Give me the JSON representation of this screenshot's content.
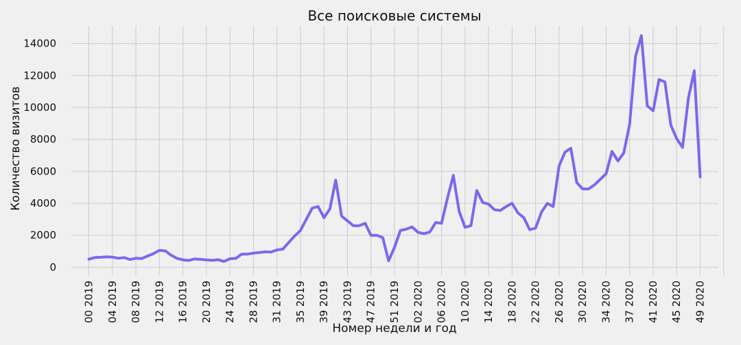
{
  "chart_data": {
    "type": "line",
    "title": "Все поисковые системы",
    "xlabel": "Номер недели и год",
    "ylabel": "Количество визитов",
    "x_tick_labels": [
      "00 2019",
      "04 2019",
      "08 2019",
      "12 2019",
      "16 2019",
      "20 2019",
      "24 2019",
      "28 2019",
      "31 2019",
      "35 2019",
      "39 2019",
      "43 2019",
      "47 2019",
      "51 2019",
      "02 2020",
      "06 2020",
      "10 2020",
      "14 2020",
      "18 2020",
      "22 2020",
      "26 2020",
      "30 2020",
      "34 2020",
      "37 2020",
      "41 2020",
      "45 2020",
      "49 2020"
    ],
    "y_ticks": [
      0,
      2000,
      4000,
      6000,
      8000,
      10000,
      12000,
      14000
    ],
    "ylim": [
      -500,
      15100
    ],
    "grid": true,
    "legend": "none",
    "colors": {
      "line": "#7b68ee",
      "background": "#f0f0f0",
      "grid": "#cbcbcb",
      "text": "#111111"
    },
    "series": [
      {
        "values": [
          500,
          600,
          620,
          650,
          630,
          560,
          600,
          480,
          560,
          540,
          700,
          850,
          1050,
          1020,
          750,
          550,
          460,
          420,
          520,
          490,
          460,
          430,
          470,
          360,
          530,
          550,
          820,
          820,
          880,
          920,
          960,
          950,
          1080,
          1130,
          1550,
          1950,
          2300,
          3000,
          3700,
          3800,
          3100,
          3650,
          5450,
          3200,
          2900,
          2600,
          2600,
          2750,
          2000,
          2000,
          1850,
          400,
          1250,
          2300,
          2380,
          2520,
          2180,
          2100,
          2200,
          2800,
          2750,
          4300,
          5750,
          3500,
          2500,
          2600,
          4800,
          4050,
          3950,
          3600,
          3550,
          3800,
          4000,
          3400,
          3100,
          2350,
          2450,
          3450,
          4000,
          3800,
          6350,
          7200,
          7450,
          5300,
          4900,
          4900,
          5150,
          5500,
          5850,
          7250,
          6650,
          7150,
          8950,
          13200,
          14500,
          10100,
          9800,
          11750,
          11600,
          8900,
          8050,
          7500,
          10600,
          12300,
          5650
        ]
      }
    ]
  }
}
